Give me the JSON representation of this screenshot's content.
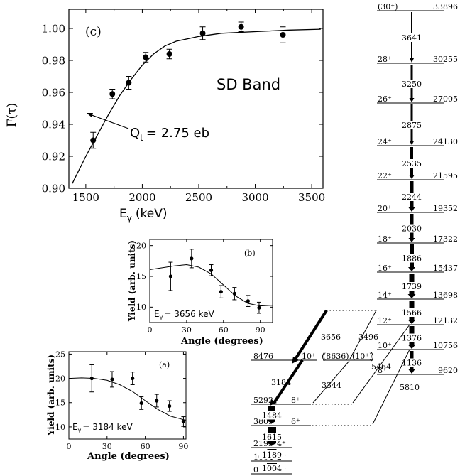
{
  "chart_data": [
    {
      "id": "c",
      "type": "scatter",
      "panel_label": "(c)",
      "xlabel": "E",
      "xlabel_sub": "γ",
      "xlabel_unit": "(keV)",
      "ylabel": "F(τ)",
      "xlim": [
        1350,
        3600
      ],
      "ylim": [
        0.9,
        1.012
      ],
      "xticks": [
        1500,
        2000,
        2500,
        3000,
        3500
      ],
      "yticks": [
        "0.90",
        "0.92",
        "0.94",
        "0.96",
        "0.98",
        "1.00"
      ],
      "annotation": "SD Band",
      "fit_label": "Q",
      "fit_label_sub": "t",
      "fit_label_rest": "= 2.75 eb",
      "points": [
        {
          "x": 1565,
          "y": 0.93,
          "err": 0.005
        },
        {
          "x": 1735,
          "y": 0.959,
          "err": 0.003
        },
        {
          "x": 1880,
          "y": 0.966,
          "err": 0.004
        },
        {
          "x": 2030,
          "y": 0.982,
          "err": 0.003
        },
        {
          "x": 2240,
          "y": 0.984,
          "err": 0.003
        },
        {
          "x": 2535,
          "y": 0.997,
          "err": 0.004
        },
        {
          "x": 2875,
          "y": 1.001,
          "err": 0.003
        },
        {
          "x": 3245,
          "y": 0.996,
          "err": 0.005
        }
      ],
      "fit_curve": [
        [
          1380,
          0.903
        ],
        [
          1500,
          0.92
        ],
        [
          1600,
          0.933
        ],
        [
          1700,
          0.946
        ],
        [
          1800,
          0.958
        ],
        [
          1900,
          0.968
        ],
        [
          2000,
          0.977
        ],
        [
          2100,
          0.984
        ],
        [
          2200,
          0.989
        ],
        [
          2300,
          0.992
        ],
        [
          2500,
          0.995
        ],
        [
          2700,
          0.997
        ],
        [
          3000,
          0.998
        ],
        [
          3300,
          0.999
        ],
        [
          3580,
          0.9995
        ]
      ]
    },
    {
      "id": "b",
      "type": "scatter",
      "panel_label": "(b)",
      "xlabel": "Angle (degrees)",
      "ylabel": "Yield (arb. units)",
      "xlim": [
        0,
        100
      ],
      "ylim": [
        7.5,
        21
      ],
      "xticks": [
        0,
        30,
        60,
        90
      ],
      "yticks": [
        10,
        15,
        20
      ],
      "energy_label": "E",
      "energy_sub": "γ",
      "energy_rest": "= 3656 keV",
      "points": [
        {
          "x": 17,
          "y": 15.0,
          "err": 2.3
        },
        {
          "x": 34,
          "y": 17.9,
          "err": 1.5
        },
        {
          "x": 50,
          "y": 16.0,
          "err": 0.9
        },
        {
          "x": 58,
          "y": 12.5,
          "err": 1.0
        },
        {
          "x": 69,
          "y": 12.2,
          "err": 1.0
        },
        {
          "x": 80,
          "y": 11.0,
          "err": 0.9
        },
        {
          "x": 89,
          "y": 9.9,
          "err": 0.9
        }
      ],
      "fit_curve": [
        [
          0,
          16.1
        ],
        [
          10,
          16.4
        ],
        [
          20,
          16.7
        ],
        [
          30,
          16.9
        ],
        [
          40,
          16.5
        ],
        [
          50,
          15.4
        ],
        [
          60,
          13.6
        ],
        [
          70,
          11.8
        ],
        [
          80,
          10.6
        ],
        [
          90,
          10.2
        ],
        [
          100,
          10.3
        ]
      ]
    },
    {
      "id": "a",
      "type": "scatter",
      "panel_label": "(a)",
      "xlabel": "Angle (degrees)",
      "ylabel": "Yield (arb. units)",
      "xlim": [
        0,
        92
      ],
      "ylim": [
        7.5,
        25.5
      ],
      "xticks": [
        0,
        30,
        60,
        90
      ],
      "yticks": [
        10,
        15,
        20,
        25
      ],
      "energy_label": "E",
      "energy_sub": "γ",
      "energy_rest": "= 3184 keV",
      "points": [
        {
          "x": 18,
          "y": 20.0,
          "err": 2.8
        },
        {
          "x": 34,
          "y": 19.8,
          "err": 1.6
        },
        {
          "x": 50,
          "y": 20.0,
          "err": 1.3
        },
        {
          "x": 57,
          "y": 14.9,
          "err": 1.3
        },
        {
          "x": 69,
          "y": 15.4,
          "err": 1.3
        },
        {
          "x": 79,
          "y": 14.3,
          "err": 1.1
        },
        {
          "x": 90,
          "y": 11.1,
          "err": 1.0
        }
      ],
      "fit_curve": [
        [
          0,
          20.0
        ],
        [
          10,
          20.1
        ],
        [
          20,
          20.0
        ],
        [
          30,
          19.6
        ],
        [
          40,
          18.7
        ],
        [
          50,
          17.3
        ],
        [
          60,
          15.4
        ],
        [
          70,
          13.6
        ],
        [
          80,
          12.2
        ],
        [
          90,
          11.5
        ],
        [
          92,
          11.4
        ]
      ]
    },
    {
      "id": "level-scheme",
      "type": "level-scheme",
      "levels": [
        {
          "spin": "(30⁺)",
          "energy": "33896"
        },
        {
          "spin": "28⁺",
          "energy": "30255"
        },
        {
          "spin": "26⁺",
          "energy": "27005"
        },
        {
          "spin": "24⁺",
          "energy": "24130"
        },
        {
          "spin": "22⁺",
          "energy": "21595"
        },
        {
          "spin": "20⁺",
          "energy": "19352"
        },
        {
          "spin": "18⁺",
          "energy": "17322"
        },
        {
          "spin": "16⁺",
          "energy": "15437"
        },
        {
          "spin": "14⁺",
          "energy": "13698"
        },
        {
          "spin": "12⁺",
          "energy": "12132"
        },
        {
          "spin": "10⁺",
          "energy": "10756"
        },
        {
          "spin": "8⁺",
          "energy": "9620"
        }
      ],
      "sd_transitions": [
        "3641",
        "3250",
        "2875",
        "2535",
        "2244",
        "2030",
        "1886",
        "1739",
        "1566",
        "1376",
        "1136"
      ],
      "low_levels": [
        {
          "energy": "8476",
          "spin": "10⁺"
        },
        {
          "energy": "(8636)",
          "spin": "(10⁺)"
        },
        {
          "energy": "5292",
          "spin": "8⁺"
        },
        {
          "energy": "3809",
          "spin": "6⁺"
        },
        {
          "energy": "2193",
          "spin": "4⁺"
        },
        {
          "energy": "1004",
          "spin": "2⁺"
        },
        {
          "energy": "0",
          "spin": "0⁺"
        }
      ],
      "gs_transitions": [
        "1484",
        "1615",
        "1189",
        "1004"
      ],
      "linking_transitions": [
        "3656",
        "3496",
        "5464",
        "3184",
        "3344",
        "5810"
      ]
    }
  ]
}
